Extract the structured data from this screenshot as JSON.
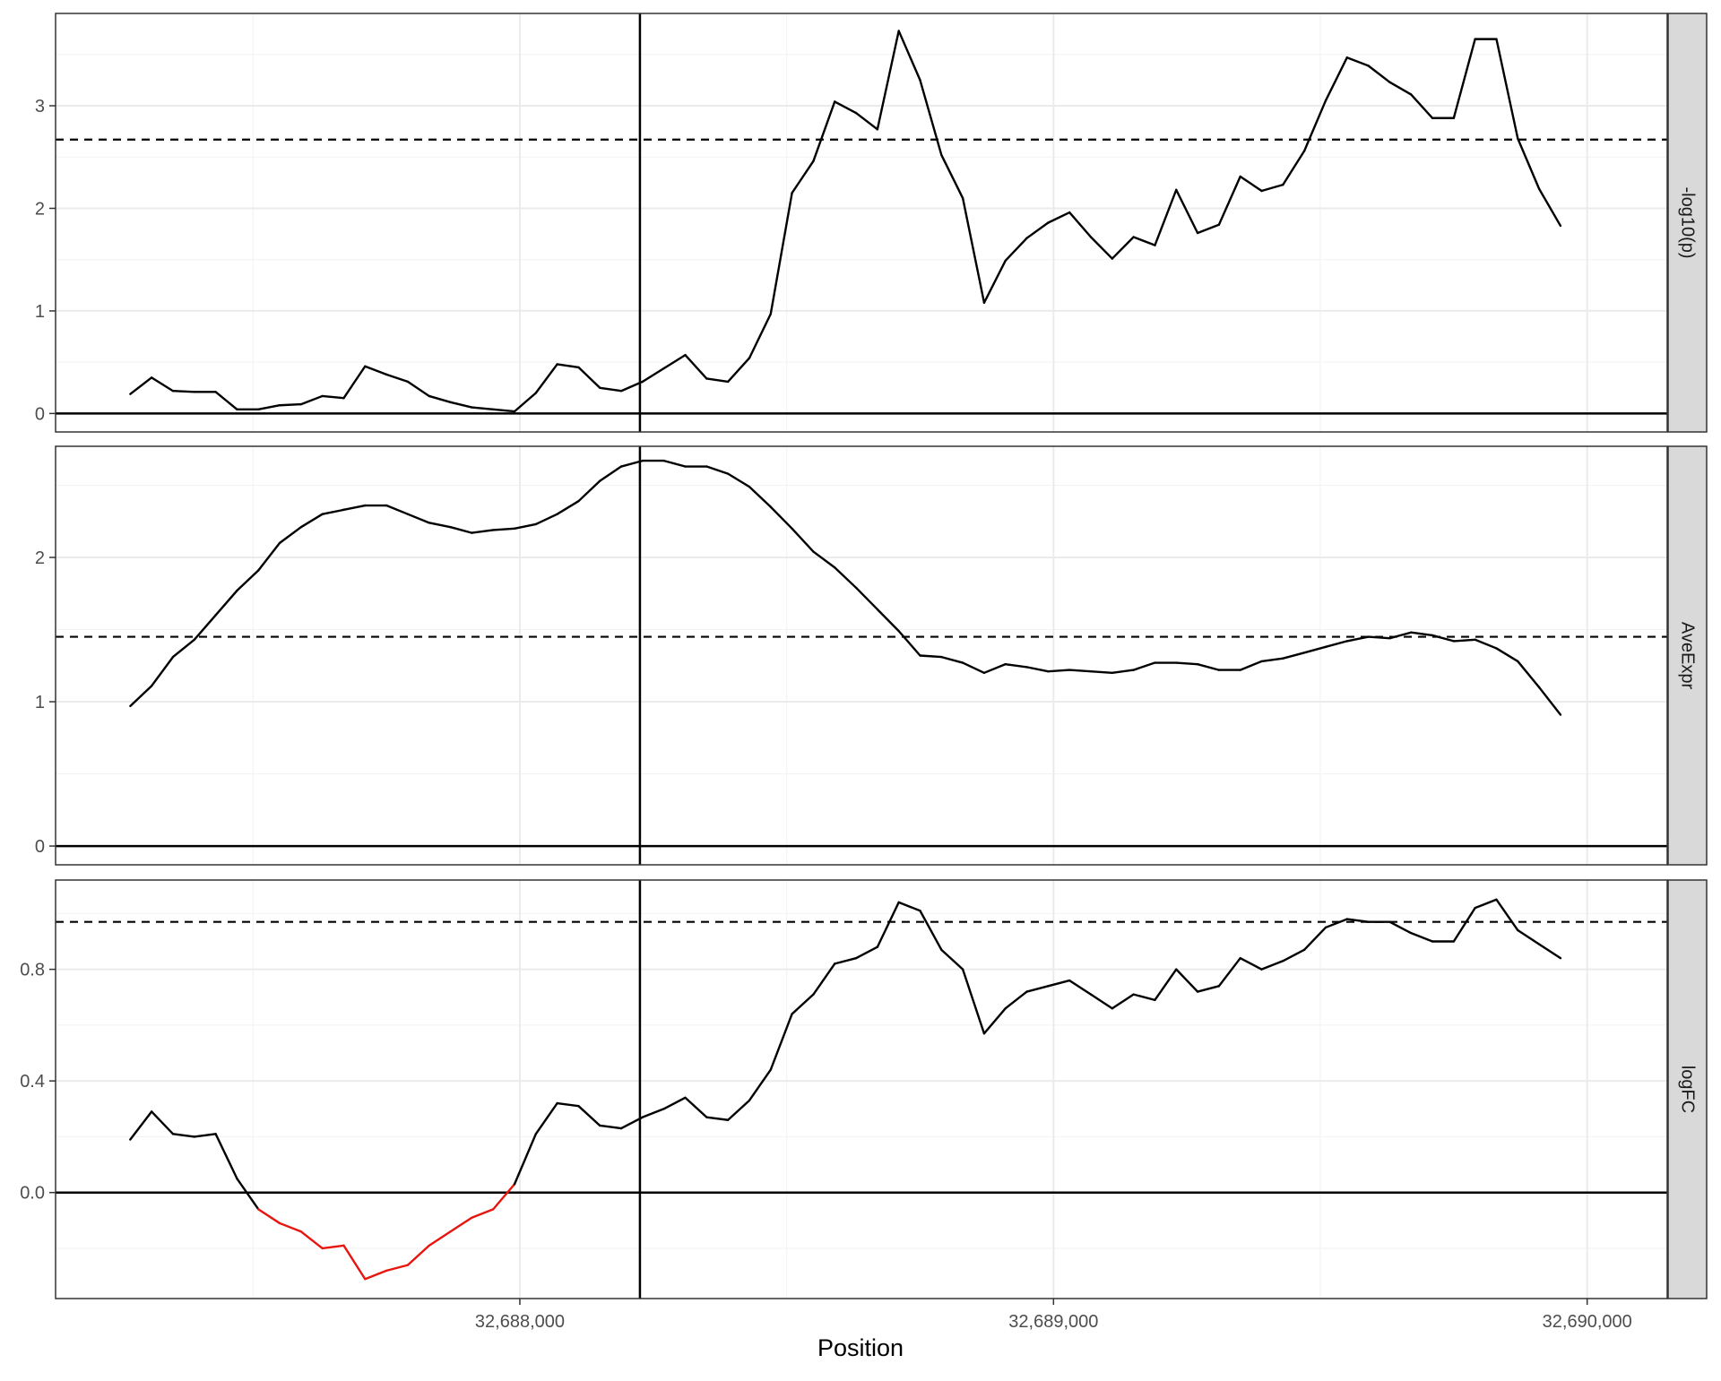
{
  "chart_data": {
    "type": "line",
    "xlabel": "Position",
    "x_ticks": [
      {
        "value": 32688000,
        "label": "32,688,000"
      },
      {
        "value": 32689000,
        "label": "32,689,000"
      },
      {
        "value": 32690000,
        "label": "32,690,000"
      }
    ],
    "xlim": [
      32687130,
      32690150
    ],
    "vline_x": 32688225,
    "grid": true,
    "x": [
      32687270,
      32687310,
      32687350,
      32687390,
      32687430,
      32687470,
      32687510,
      32687550,
      32687590,
      32687630,
      32687670,
      32687710,
      32687750,
      32687790,
      32687830,
      32687870,
      32687910,
      32687950,
      32687990,
      32688030,
      32688070,
      32688110,
      32688150,
      32688190,
      32688230,
      32688270,
      32688310,
      32688350,
      32688390,
      32688430,
      32688470,
      32688510,
      32688550,
      32688590,
      32688630,
      32688670,
      32688710,
      32688750,
      32688790,
      32688830,
      32688870,
      32688910,
      32688950,
      32688990,
      32689030,
      32689070,
      32689110,
      32689150,
      32689190,
      32689230,
      32689270,
      32689310,
      32689350,
      32689390,
      32689430,
      32689470,
      32689510,
      32689550,
      32689590,
      32689630,
      32689670,
      32689710,
      32689750,
      32689790,
      32689830,
      32689870,
      32689910,
      32689950
    ],
    "panels": [
      {
        "strip_label": "-log10(p)",
        "ylim": [
          -0.18,
          3.9
        ],
        "y_ticks": [
          0,
          1,
          2,
          3
        ],
        "y_tick_labels": [
          "0",
          "1",
          "2",
          "3"
        ],
        "hline": 2.67,
        "y": [
          0.19,
          0.35,
          0.22,
          0.21,
          0.21,
          0.04,
          0.04,
          0.08,
          0.09,
          0.17,
          0.15,
          0.46,
          0.38,
          0.31,
          0.17,
          0.11,
          0.06,
          0.04,
          0.02,
          0.2,
          0.48,
          0.45,
          0.25,
          0.22,
          0.31,
          0.44,
          0.57,
          0.34,
          0.31,
          0.54,
          0.97,
          2.15,
          2.46,
          3.04,
          2.93,
          2.77,
          3.73,
          3.25,
          2.52,
          2.1,
          1.08,
          1.49,
          1.71,
          1.86,
          1.96,
          1.72,
          1.51,
          1.72,
          1.64,
          2.18,
          1.76,
          1.84,
          2.31,
          2.17,
          2.23,
          2.56,
          3.05,
          3.47,
          3.39,
          3.23,
          3.11,
          2.88,
          2.88,
          3.65,
          3.65,
          2.68,
          2.19,
          1.83
        ],
        "neg_color": null
      },
      {
        "strip_label": "AveExpr",
        "ylim": [
          -0.13,
          2.77
        ],
        "y_ticks": [
          0,
          1,
          2
        ],
        "y_tick_labels": [
          "0",
          "1",
          "2"
        ],
        "hline": 1.45,
        "y": [
          0.97,
          1.11,
          1.31,
          1.43,
          1.6,
          1.77,
          1.91,
          2.1,
          2.21,
          2.3,
          2.33,
          2.36,
          2.36,
          2.3,
          2.24,
          2.21,
          2.17,
          2.19,
          2.2,
          2.23,
          2.3,
          2.39,
          2.53,
          2.63,
          2.67,
          2.67,
          2.63,
          2.63,
          2.58,
          2.49,
          2.35,
          2.2,
          2.04,
          1.93,
          1.79,
          1.64,
          1.49,
          1.32,
          1.31,
          1.27,
          1.2,
          1.26,
          1.24,
          1.21,
          1.22,
          1.21,
          1.2,
          1.22,
          1.27,
          1.27,
          1.26,
          1.22,
          1.22,
          1.28,
          1.3,
          1.34,
          1.38,
          1.42,
          1.45,
          1.44,
          1.48,
          1.46,
          1.42,
          1.43,
          1.37,
          1.28,
          1.1,
          0.91
        ],
        "neg_color": null
      },
      {
        "strip_label": "logFC",
        "ylim": [
          -0.38,
          1.12
        ],
        "y_ticks": [
          0,
          0.4,
          0.8
        ],
        "y_tick_labels": [
          "0.0",
          "0.4",
          "0.8"
        ],
        "hline": 0.97,
        "y": [
          0.19,
          0.29,
          0.21,
          0.2,
          0.21,
          0.05,
          -0.06,
          -0.11,
          -0.14,
          -0.2,
          -0.19,
          -0.31,
          -0.28,
          -0.26,
          -0.19,
          -0.14,
          -0.09,
          -0.06,
          0.03,
          0.21,
          0.32,
          0.31,
          0.24,
          0.23,
          0.27,
          0.3,
          0.34,
          0.27,
          0.26,
          0.33,
          0.44,
          0.64,
          0.71,
          0.82,
          0.84,
          0.88,
          1.04,
          1.01,
          0.87,
          0.8,
          0.57,
          0.66,
          0.72,
          0.74,
          0.76,
          0.71,
          0.66,
          0.71,
          0.69,
          0.8,
          0.72,
          0.74,
          0.84,
          0.8,
          0.83,
          0.87,
          0.95,
          0.98,
          0.97,
          0.97,
          0.93,
          0.9,
          0.9,
          1.02,
          1.05,
          0.94,
          0.89,
          0.84
        ],
        "neg_color": "#e8150f"
      }
    ]
  }
}
